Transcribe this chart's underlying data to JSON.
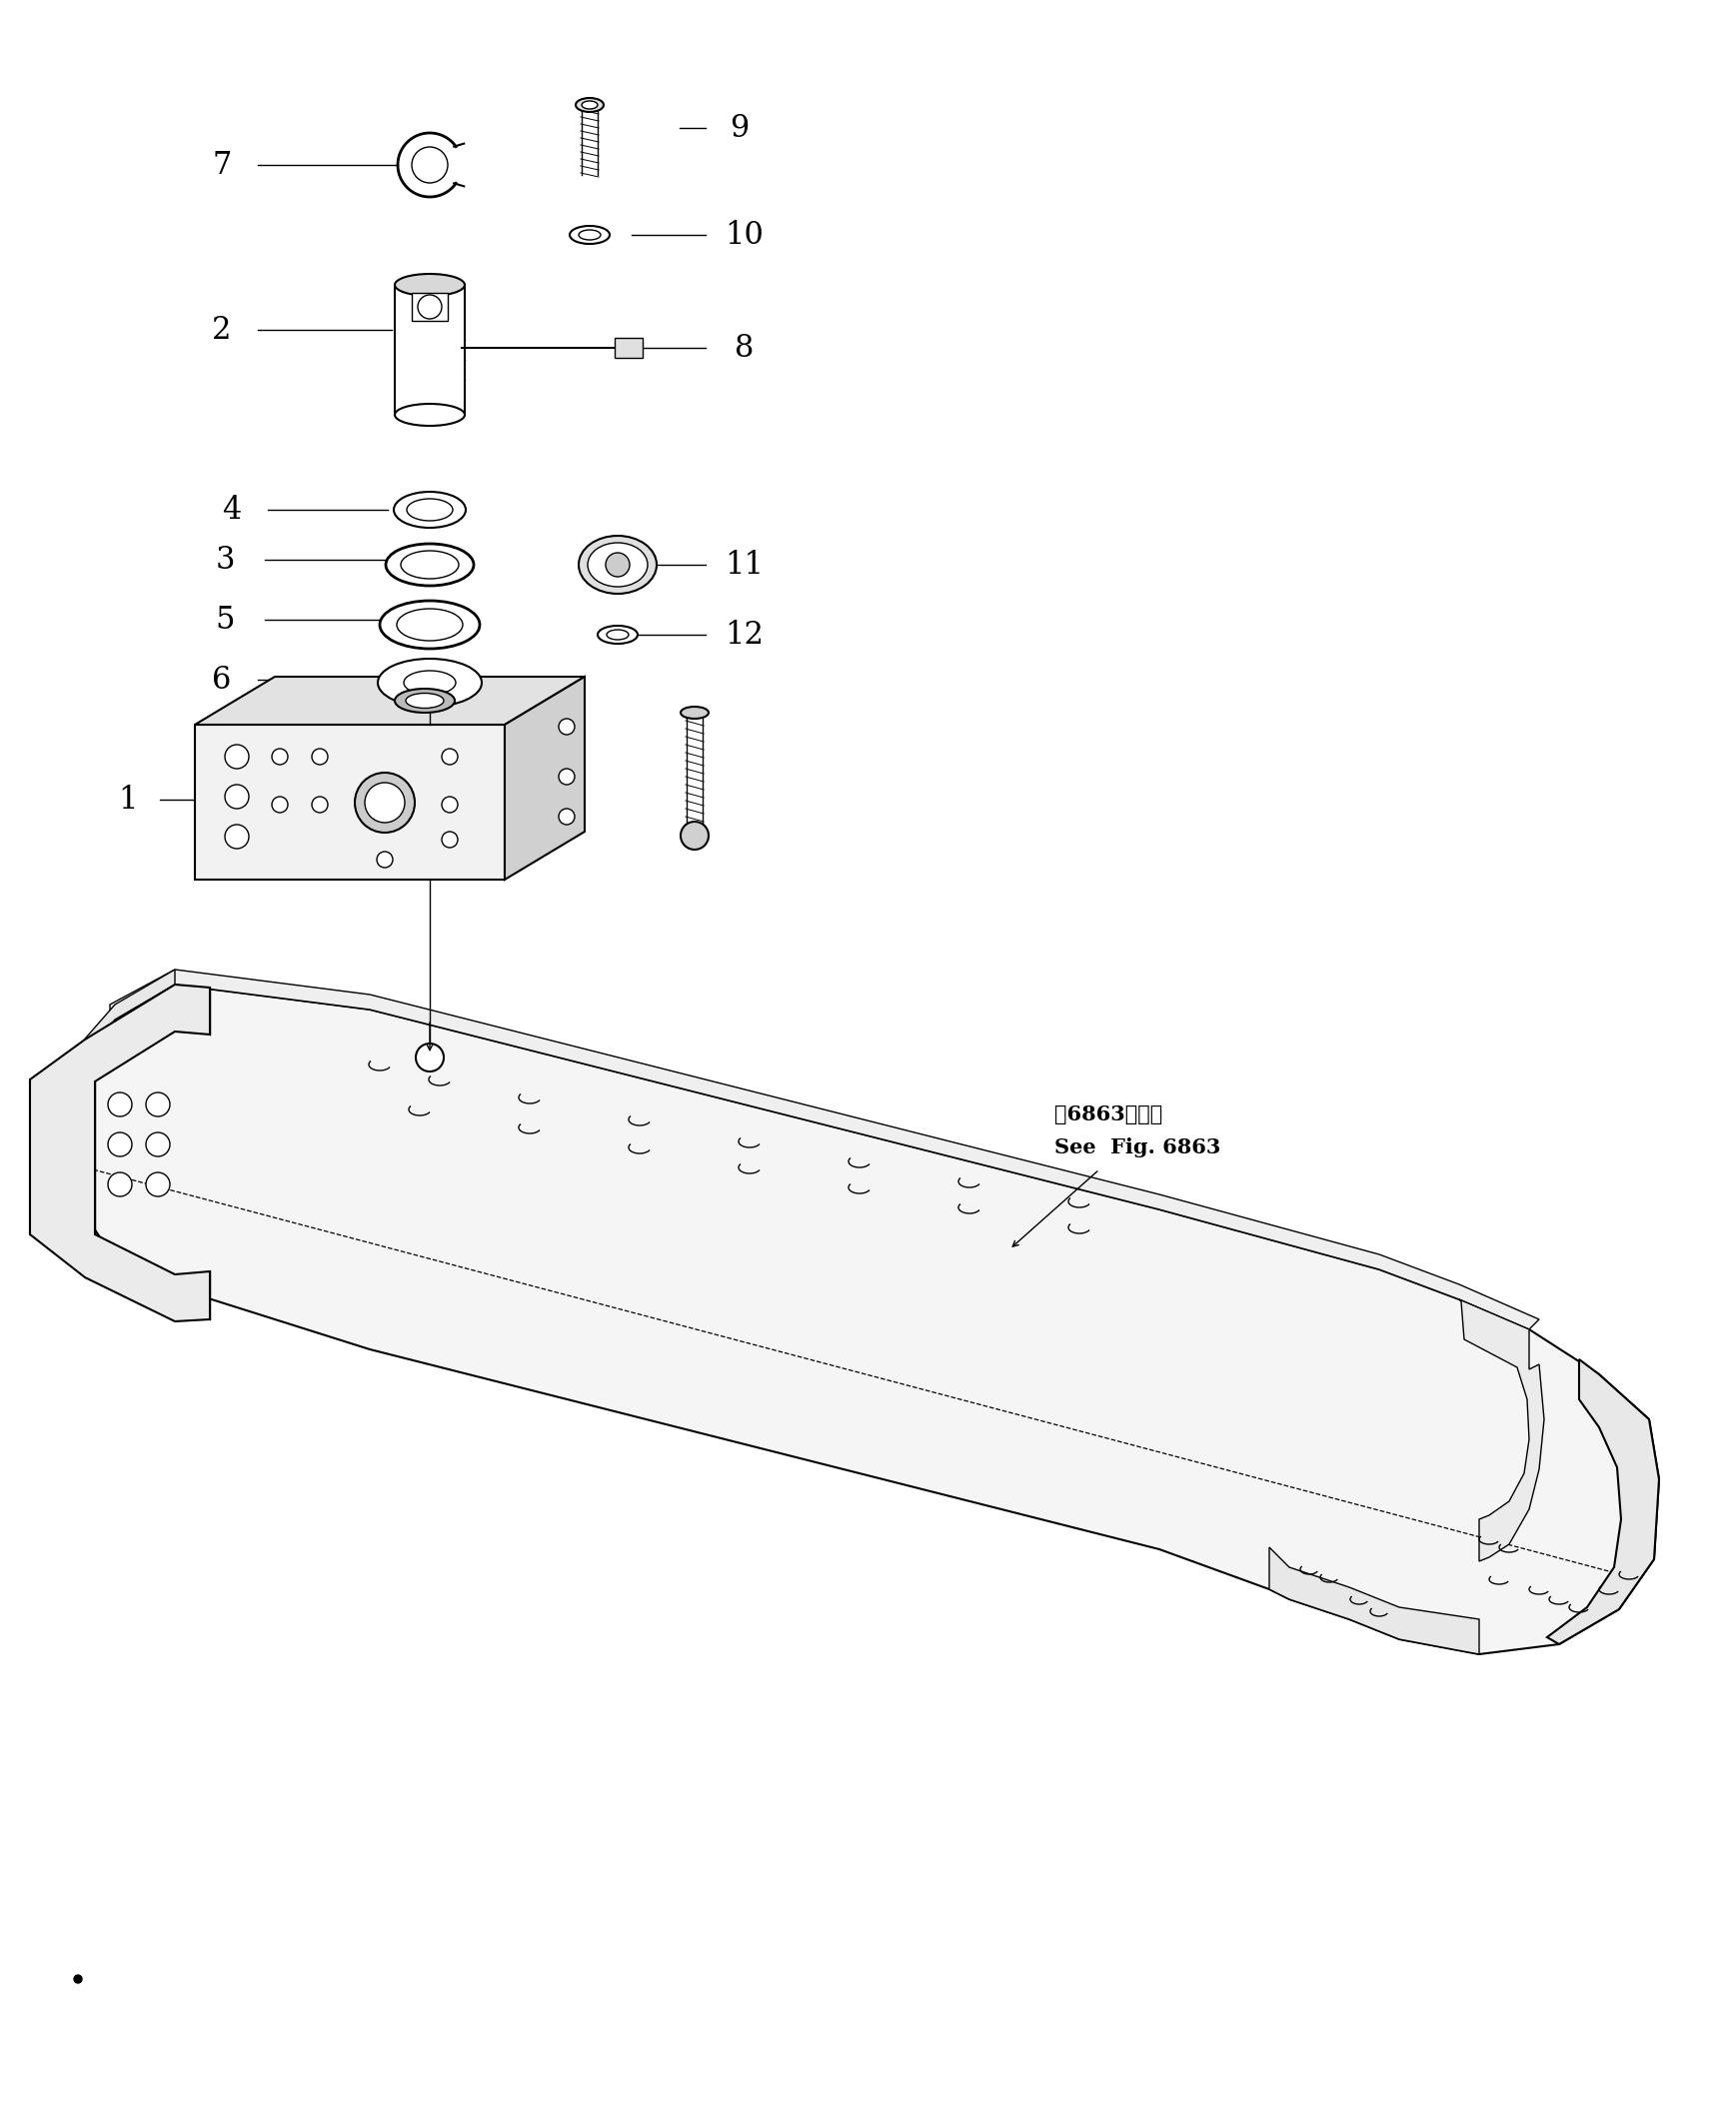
{
  "bg_color": "#ffffff",
  "line_color": "#000000",
  "fig_width": 17.37,
  "fig_height": 21.15,
  "annotation_text_ja": "第6863図参照",
  "annotation_text_en": "See  Fig. 6863"
}
